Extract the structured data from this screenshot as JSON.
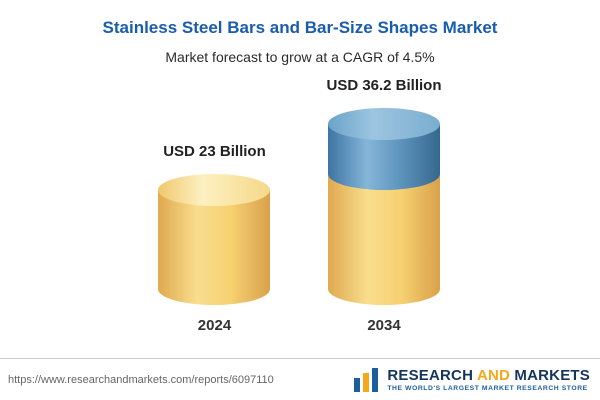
{
  "header": {
    "title": "Stainless Steel Bars and Bar-Size Shapes Market",
    "subtitle": "Market forecast to grow at a CAGR of 4.5%"
  },
  "chart_data": {
    "type": "bar",
    "title": "Stainless Steel Bars and Bar-Size Shapes Market",
    "subtitle": "Market forecast to grow at a CAGR of 4.5%",
    "categories": [
      "2024",
      "2034"
    ],
    "values": [
      23,
      36.2
    ],
    "value_labels": [
      "USD 23 Billion",
      "USD 36.2 Billion"
    ],
    "unit": "USD Billion",
    "cagr": "4.5%",
    "legend_position": "none",
    "grid": false,
    "colors": {
      "bar_base": "#F6CE6B",
      "bar_growth_segment": "#5D93BC",
      "title_text": "#1A5DAB"
    }
  },
  "footer": {
    "url": "https://www.researchandmarkets.com/reports/6097110",
    "logo": {
      "research": "RESEARCH",
      "and": "AND",
      "markets": "MARKETS",
      "tagline": "THE WORLD'S LARGEST MARKET RESEARCH STORE"
    }
  }
}
